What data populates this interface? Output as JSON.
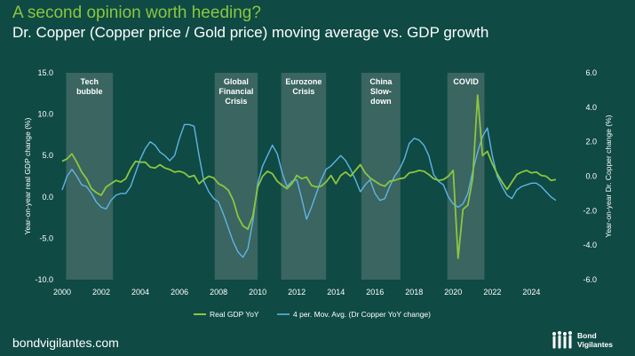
{
  "header": {
    "title": "A second opinion worth heeding?",
    "subtitle": "Dr. Copper (Copper price / Gold price) moving average vs. GDP growth"
  },
  "footer": {
    "url": "bondvigilantes.com",
    "logo_line1": "Bond",
    "logo_line2": "Vigilantes"
  },
  "colors": {
    "background": "#0f4a44",
    "title": "#8cc63f",
    "gdp": "#8cc63f",
    "copper": "#5fb4e6",
    "band": "#3a6560"
  },
  "chart_data": {
    "type": "line",
    "x_ticks": [
      "2000",
      "2002",
      "2004",
      "2006",
      "2008",
      "2010",
      "2012",
      "2014",
      "2016",
      "2018",
      "2020",
      "2022",
      "2024"
    ],
    "y_left_ticks": [
      "15.0",
      "10.0",
      "5.0",
      "0.0",
      "-5.0",
      "-10.0"
    ],
    "y_right_ticks": [
      "6.0",
      "4.0",
      "2.0",
      "0.0",
      "-2.0",
      "-4.0",
      "-6.0"
    ],
    "ylabel_left": "Year-on-year real GDP change (%)",
    "ylabel_right": "Year-on-year Dr. Copper change (%)",
    "xlim": [
      2000,
      2025.8
    ],
    "ylim_left": [
      -10,
      15
    ],
    "ylim_right": [
      -6,
      6
    ],
    "bands": [
      {
        "label": "Tech bubble",
        "lines": [
          "Tech",
          "bubble"
        ],
        "start": 2000.2,
        "end": 2002.6
      },
      {
        "label": "Global Financial Crisis",
        "lines": [
          "Global",
          "Financial",
          "Crisis"
        ],
        "start": 2007.8,
        "end": 2010.0
      },
      {
        "label": "Eurozone Crisis",
        "lines": [
          "Eurozone",
          "Crisis"
        ],
        "start": 2011.2,
        "end": 2013.5
      },
      {
        "label": "China Slow-down",
        "lines": [
          "China",
          "Slow-",
          "down"
        ],
        "start": 2015.3,
        "end": 2017.3
      },
      {
        "label": "COVID",
        "lines": [
          "COVID"
        ],
        "start": 2019.7,
        "end": 2021.6
      }
    ],
    "series": [
      {
        "name": "Real GDP YoY",
        "axis": "left",
        "x": [
          2000.0,
          2000.25,
          2000.5,
          2000.75,
          2001.0,
          2001.25,
          2001.5,
          2001.75,
          2002.0,
          2002.25,
          2002.5,
          2002.75,
          2003.0,
          2003.25,
          2003.5,
          2003.75,
          2004.0,
          2004.25,
          2004.5,
          2004.75,
          2005.0,
          2005.25,
          2005.5,
          2005.75,
          2006.0,
          2006.25,
          2006.5,
          2006.75,
          2007.0,
          2007.25,
          2007.5,
          2007.75,
          2008.0,
          2008.25,
          2008.5,
          2008.75,
          2009.0,
          2009.25,
          2009.5,
          2009.75,
          2010.0,
          2010.25,
          2010.5,
          2010.75,
          2011.0,
          2011.25,
          2011.5,
          2011.75,
          2012.0,
          2012.25,
          2012.5,
          2012.75,
          2013.0,
          2013.25,
          2013.5,
          2013.75,
          2014.0,
          2014.25,
          2014.5,
          2014.75,
          2015.0,
          2015.25,
          2015.5,
          2015.75,
          2016.0,
          2016.25,
          2016.5,
          2016.75,
          2017.0,
          2017.25,
          2017.5,
          2017.75,
          2018.0,
          2018.25,
          2018.5,
          2018.75,
          2019.0,
          2019.25,
          2019.5,
          2019.75,
          2020.0,
          2020.25,
          2020.5,
          2020.75,
          2021.0,
          2021.25,
          2021.5,
          2021.75,
          2022.0,
          2022.25,
          2022.5,
          2022.75,
          2023.0,
          2023.25,
          2023.5,
          2023.75,
          2024.0,
          2024.25,
          2024.5,
          2024.75,
          2025.0,
          2025.25
        ],
        "values": [
          4.3,
          4.6,
          5.2,
          4.2,
          3.0,
          2.2,
          1.0,
          0.5,
          0.2,
          1.2,
          1.6,
          2.0,
          1.8,
          2.2,
          3.4,
          4.3,
          4.2,
          4.2,
          3.6,
          3.5,
          3.9,
          3.5,
          3.3,
          3.0,
          3.1,
          2.9,
          2.4,
          2.6,
          1.6,
          2.1,
          2.5,
          2.3,
          1.6,
          1.3,
          0.8,
          -0.4,
          -2.4,
          -3.5,
          -3.9,
          -2.3,
          1.2,
          2.5,
          3.1,
          2.8,
          1.9,
          1.4,
          1.0,
          1.6,
          2.6,
          2.2,
          2.4,
          1.4,
          1.2,
          1.3,
          1.8,
          2.6,
          1.6,
          2.6,
          3.0,
          2.5,
          3.2,
          3.9,
          2.9,
          2.3,
          1.9,
          1.5,
          1.3,
          1.9,
          2.0,
          2.2,
          2.3,
          2.9,
          3.0,
          3.2,
          3.1,
          2.7,
          2.2,
          2.0,
          2.1,
          2.5,
          3.2,
          -7.4,
          -1.5,
          -1.0,
          2.3,
          12.3,
          5.0,
          5.5,
          4.0,
          2.8,
          1.8,
          0.9,
          1.8,
          2.7,
          3.0,
          3.2,
          2.9,
          3.0,
          2.6,
          2.5,
          2.0,
          2.1
        ]
      },
      {
        "name": "4 per. Mov. Avg. (Dr Copper YoY change)",
        "axis": "right",
        "x": [
          2000.0,
          2000.25,
          2000.5,
          2000.75,
          2001.0,
          2001.25,
          2001.5,
          2001.75,
          2002.0,
          2002.25,
          2002.5,
          2002.75,
          2003.0,
          2003.25,
          2003.5,
          2003.75,
          2004.0,
          2004.25,
          2004.5,
          2004.75,
          2005.0,
          2005.25,
          2005.5,
          2005.75,
          2006.0,
          2006.25,
          2006.5,
          2006.75,
          2007.0,
          2007.25,
          2007.5,
          2007.75,
          2008.0,
          2008.25,
          2008.5,
          2008.75,
          2009.0,
          2009.25,
          2009.5,
          2009.75,
          2010.0,
          2010.25,
          2010.5,
          2010.75,
          2011.0,
          2011.25,
          2011.5,
          2011.75,
          2012.0,
          2012.25,
          2012.5,
          2012.75,
          2013.0,
          2013.25,
          2013.5,
          2013.75,
          2014.0,
          2014.25,
          2014.5,
          2014.75,
          2015.0,
          2015.25,
          2015.5,
          2015.75,
          2016.0,
          2016.25,
          2016.5,
          2016.75,
          2017.0,
          2017.25,
          2017.5,
          2017.75,
          2018.0,
          2018.25,
          2018.5,
          2018.75,
          2019.0,
          2019.25,
          2019.5,
          2019.75,
          2020.0,
          2020.25,
          2020.5,
          2020.75,
          2021.0,
          2021.25,
          2021.5,
          2021.75,
          2022.0,
          2022.25,
          2022.5,
          2022.75,
          2023.0,
          2023.25,
          2023.5,
          2023.75,
          2024.0,
          2024.25,
          2024.5,
          2024.75,
          2025.0,
          2025.25
        ],
        "values": [
          -0.8,
          0.0,
          0.4,
          0.0,
          -0.5,
          -0.6,
          -1.0,
          -1.5,
          -1.8,
          -1.9,
          -1.4,
          -1.1,
          -1.0,
          -1.0,
          -0.6,
          0.2,
          1.0,
          1.6,
          2.0,
          1.8,
          1.4,
          1.2,
          0.9,
          1.2,
          2.2,
          3.0,
          3.0,
          2.9,
          1.2,
          -0.3,
          -0.9,
          -1.3,
          -1.5,
          -2.2,
          -3.0,
          -3.8,
          -4.4,
          -4.7,
          -4.2,
          -2.6,
          -0.4,
          0.6,
          1.2,
          1.8,
          1.3,
          0.2,
          -0.6,
          -0.3,
          -0.2,
          -1.3,
          -2.5,
          -1.8,
          -1.0,
          -0.2,
          0.4,
          0.6,
          0.9,
          1.2,
          0.9,
          0.4,
          -0.2,
          -0.9,
          -0.5,
          -0.2,
          -1.0,
          -1.4,
          -1.3,
          -0.6,
          0.0,
          0.4,
          1.0,
          1.9,
          2.2,
          2.1,
          1.8,
          1.2,
          0.1,
          -0.3,
          -0.5,
          -1.2,
          -1.6,
          -1.8,
          -1.6,
          -1.0,
          0.3,
          1.4,
          2.3,
          2.8,
          1.2,
          0.0,
          -0.6,
          -1.1,
          -1.3,
          -0.8,
          -0.6,
          -0.5,
          -0.4,
          -0.4,
          -0.6,
          -0.9,
          -1.2,
          -1.4
        ]
      }
    ]
  }
}
